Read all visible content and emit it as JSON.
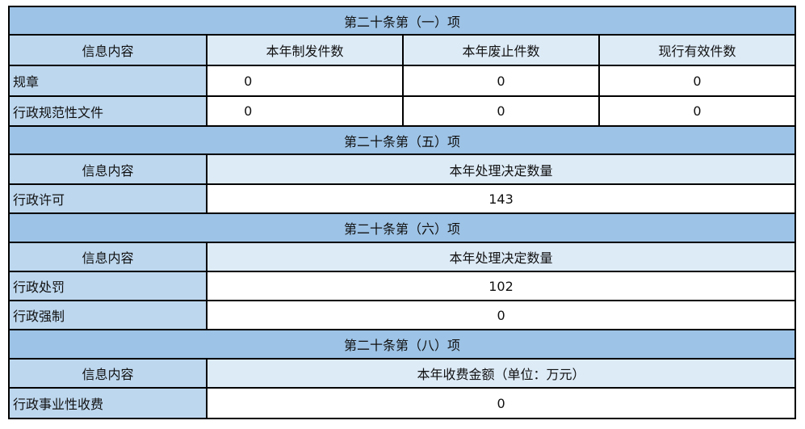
{
  "colors": {
    "title": "#9dc3e6",
    "label": "#bdd7ee",
    "header": "#ddebf7"
  },
  "s1": {
    "title": "第二十条第（一）项",
    "h0": "信息内容",
    "h1": "本年制发件数",
    "h2": "本年废止件数",
    "h3": "现行有效件数",
    "rows": [
      {
        "label": "规章",
        "v1": "0",
        "v2": "0",
        "v3": "0"
      },
      {
        "label": "行政规范性文件",
        "v1": "0",
        "v2": "0",
        "v3": "0"
      }
    ]
  },
  "s5": {
    "title": "第二十条第（五）项",
    "h0": "信息内容",
    "h1": "本年处理决定数量",
    "rows": [
      {
        "label": "行政许可",
        "v": "143"
      }
    ]
  },
  "s6": {
    "title": "第二十条第（六）项",
    "h0": "信息内容",
    "h1": "本年处理决定数量",
    "rows": [
      {
        "label": "行政处罚",
        "v": "102"
      },
      {
        "label": "行政强制",
        "v": "0"
      }
    ]
  },
  "s8": {
    "title": "第二十条第（八）项",
    "h0": "信息内容",
    "h1": "本年收费金额（单位：万元）",
    "rows": [
      {
        "label": "行政事业性收费",
        "v": "0"
      }
    ]
  }
}
